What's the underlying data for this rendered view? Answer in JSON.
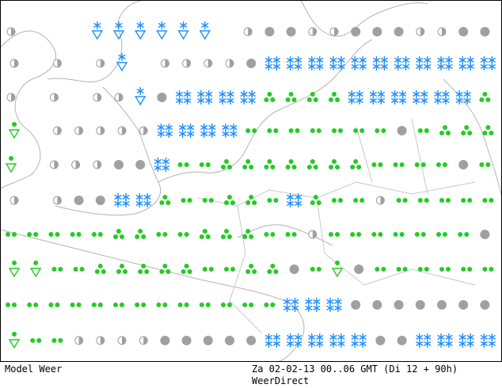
{
  "footer": {
    "left": "Model Weer",
    "right": "Za 02-02-13 00..06 GMT (Di 12 + 90h)",
    "source": "WeerDirect"
  }
}
